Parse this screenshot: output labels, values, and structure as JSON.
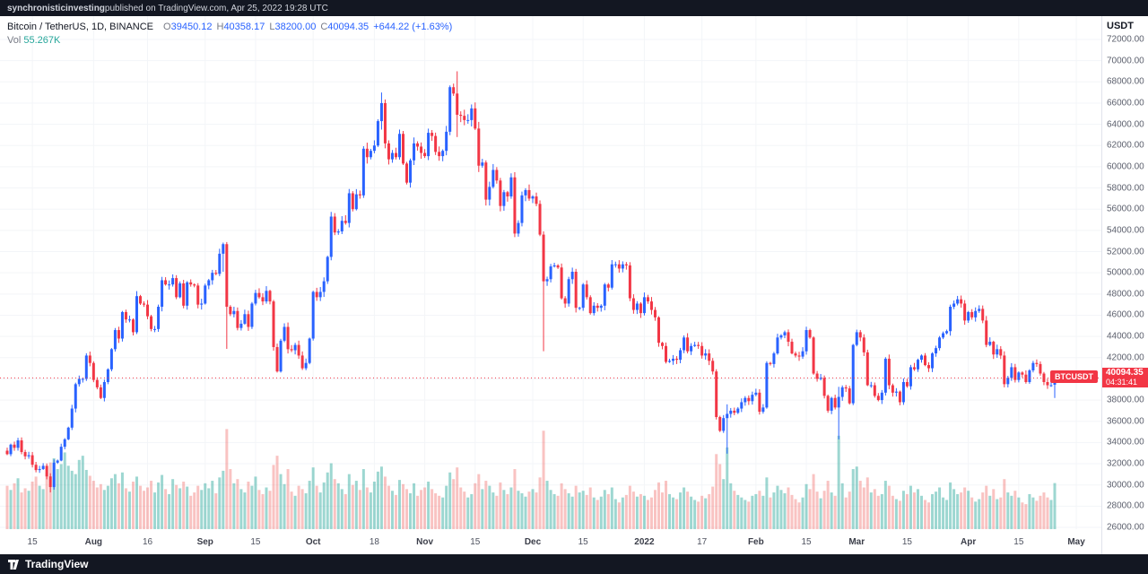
{
  "banner": {
    "user": "synchronisticinvesting",
    "rest": " published on TradingView.com, Apr 25, 2022 19:28 UTC"
  },
  "legend": {
    "title": "Bitcoin / TetherUS, 1D, BINANCE",
    "ohlc": [
      {
        "label": "O",
        "value": "39450.12"
      },
      {
        "label": "H",
        "value": "40358.17"
      },
      {
        "label": "L",
        "value": "38200.00"
      },
      {
        "label": "C",
        "value": "40094.35"
      }
    ],
    "change": "+644.22 (+1.63%)",
    "vol_label": "Vol",
    "vol_value": "55.267K"
  },
  "price_axis": {
    "currency": "USDT"
  },
  "price_line": {
    "symbol": "BTCUSDT",
    "price": "40094.35",
    "countdown": "04:31:41"
  },
  "footer": {
    "brand": "TradingView"
  },
  "colors": {
    "up": "#2962ff",
    "down": "#f23645",
    "volume_up": "rgba(38,166,154,0.45)",
    "volume_down": "rgba(239,83,80,0.35)",
    "accent": "#f23645",
    "grid": "#f3f5f8",
    "frame": "#131722"
  },
  "chart_data": {
    "type": "candlestick",
    "symbol": "BTCUSDT",
    "exchange": "BINANCE",
    "timeframe": "1D",
    "price_unit": "USDT",
    "start_date": "2021-07-08",
    "end_date": "2022-04-25",
    "ylim": [
      26000,
      72000
    ],
    "y_step": 2000,
    "current_price": 40094.35,
    "current_volume_k": 55.267,
    "last_candle": {
      "o": 39450.12,
      "h": 40358.17,
      "l": 38200.0,
      "c": 40094.35
    },
    "closes": [
      32900,
      33800,
      33500,
      34200,
      33100,
      32700,
      32800,
      31900,
      31400,
      31500,
      31800,
      30800,
      29800,
      32100,
      32300,
      33600,
      34300,
      35400,
      37200,
      39500,
      40000,
      40000,
      42200,
      41500,
      39900,
      39200,
      38200,
      39700,
      40900,
      42800,
      44600,
      43800,
      46300,
      45600,
      45600,
      44400,
      47800,
      47100,
      47000,
      45900,
      44700,
      44700,
      46800,
      49300,
      48900,
      48900,
      49500,
      47700,
      49000,
      46900,
      49100,
      48900,
      48800,
      47000,
      47100,
      48800,
      49300,
      50000,
      49900,
      51800,
      52700,
      46800,
      46100,
      46400,
      44800,
      45200,
      46100,
      44900,
      47100,
      48100,
      47700,
      47300,
      48300,
      47300,
      43000,
      40700,
      43600,
      44900,
      42800,
      42700,
      43200,
      42200,
      41000,
      41500,
      43800,
      48200,
      47700,
      48200,
      49200,
      51500,
      55300,
      53800,
      53900,
      54900,
      54700,
      57500,
      56000,
      57400,
      57300,
      61700,
      60900,
      61500,
      62000,
      64300,
      66000,
      62200,
      60700,
      61300,
      60900,
      63100,
      60300,
      58500,
      60600,
      62200,
      61900,
      61300,
      61000,
      63200,
      62900,
      61400,
      61000,
      61500,
      63300,
      67500,
      66900,
      64900,
      64800,
      64400,
      64400,
      65500,
      63600,
      60100,
      60400,
      56900,
      58100,
      59700,
      58700,
      56300,
      57600,
      57200,
      59000,
      53700,
      54700,
      57300,
      57800,
      57000,
      57200,
      56500,
      53600,
      49200,
      49400,
      50600,
      50700,
      50500,
      47600,
      47100,
      49400,
      50100,
      46700,
      46700,
      48900,
      47700,
      46200,
      46900,
      46700,
      46900,
      48900,
      48600,
      50800,
      50800,
      50400,
      50800,
      50700,
      47600,
      46500,
      47100,
      46200,
      47700,
      47300,
      46500,
      45800,
      43400,
      43100,
      41600,
      41700,
      41900,
      41800,
      42700,
      43900,
      42600,
      43100,
      43200,
      43100,
      42200,
      42400,
      41700,
      40700,
      36400,
      35100,
      36300,
      36700,
      37000,
      36800,
      37200,
      37800,
      38200,
      37900,
      38500,
      38700,
      36900,
      37300,
      41500,
      41400,
      42400,
      43900,
      44100,
      44400,
      43500,
      42400,
      42200,
      42100,
      42600,
      44600,
      43900,
      40500,
      40000,
      40100,
      38400,
      37000,
      38200,
      37300,
      38300,
      39200,
      39100,
      37700,
      43200,
      44400,
      43900,
      42500,
      39400,
      39400,
      38400,
      38000,
      38700,
      41900,
      39400,
      38700,
      38800,
      37800,
      39700,
      39300,
      41100,
      40900,
      41800,
      42200,
      41300,
      41000,
      42400,
      42900,
      43900,
      44300,
      44500,
      46800,
      47100,
      47500,
      47100,
      45500,
      46300,
      45800,
      46400,
      46600,
      45500,
      43200,
      43500,
      42300,
      42800,
      42200,
      39500,
      40100,
      41100,
      39900,
      40600,
      40400,
      39700,
      40800,
      41500,
      41400,
      40500,
      39700,
      39400,
      39400,
      40094
    ],
    "volumes_k": [
      52,
      47,
      55,
      61,
      44,
      49,
      46,
      57,
      63,
      52,
      48,
      68,
      80,
      85,
      72,
      78,
      92,
      76,
      70,
      66,
      83,
      88,
      71,
      64,
      58,
      50,
      54,
      47,
      52,
      61,
      66,
      55,
      68,
      49,
      45,
      57,
      63,
      52,
      46,
      50,
      58,
      44,
      56,
      65,
      48,
      42,
      60,
      53,
      49,
      57,
      51,
      40,
      44,
      52,
      47,
      55,
      49,
      58,
      43,
      62,
      70,
      120,
      72,
      55,
      60,
      48,
      44,
      57,
      52,
      63,
      47,
      42,
      50,
      46,
      77,
      88,
      66,
      54,
      72,
      45,
      40,
      52,
      48,
      43,
      58,
      74,
      52,
      44,
      56,
      68,
      79,
      60,
      55,
      48,
      42,
      66,
      53,
      58,
      47,
      72,
      50,
      44,
      57,
      69,
      75,
      63,
      52,
      46,
      41,
      59,
      54,
      48,
      43,
      55,
      40,
      47,
      50,
      57,
      48,
      43,
      40,
      38,
      52,
      68,
      60,
      74,
      50,
      45,
      38,
      42,
      55,
      66,
      48,
      58,
      52,
      44,
      40,
      56,
      47,
      42,
      50,
      72,
      46,
      43,
      39,
      45,
      48,
      44,
      62,
      118,
      58,
      47,
      42,
      40,
      55,
      48,
      43,
      39,
      52,
      44,
      46,
      41,
      50,
      38,
      35,
      39,
      47,
      42,
      50,
      36,
      32,
      38,
      41,
      52,
      45,
      39,
      42,
      40,
      35,
      38,
      47,
      56,
      44,
      58,
      42,
      38,
      36,
      44,
      50,
      45,
      39,
      35,
      33,
      40,
      37,
      42,
      51,
      90,
      78,
      60,
      98,
      55,
      46,
      41,
      38,
      35,
      33,
      40,
      42,
      46,
      40,
      62,
      38,
      44,
      52,
      47,
      43,
      50,
      41,
      36,
      32,
      38,
      54,
      48,
      66,
      45,
      37,
      46,
      58,
      44,
      40,
      112,
      55,
      38,
      45,
      72,
      75,
      58,
      50,
      62,
      44,
      48,
      40,
      42,
      58,
      52,
      40,
      36,
      34,
      46,
      42,
      52,
      44,
      48,
      40,
      35,
      32,
      42,
      45,
      50,
      38,
      35,
      56,
      48,
      42,
      44,
      50,
      46,
      38,
      33,
      36,
      44,
      52,
      40,
      48,
      36,
      38,
      60,
      44,
      40,
      46,
      38,
      32,
      30,
      42,
      38,
      34,
      40,
      44,
      38,
      35,
      55.267
    ],
    "wick_overrides": {
      "12": [
        31100,
        29300
      ],
      "60": [
        52850,
        50100
      ],
      "61": [
        52900,
        42830
      ],
      "104": [
        67000,
        63500
      ],
      "125": [
        69000,
        62800
      ],
      "149": [
        53900,
        42600
      ],
      "200": [
        37600,
        32950
      ],
      "231": [
        39250,
        34300
      ]
    },
    "time_ticks": [
      {
        "t": "15",
        "i": 7
      },
      {
        "t": "Aug",
        "i": 24,
        "m": 1
      },
      {
        "t": "16",
        "i": 39
      },
      {
        "t": "Sep",
        "i": 55,
        "m": 1
      },
      {
        "t": "15",
        "i": 69
      },
      {
        "t": "Oct",
        "i": 85,
        "m": 1
      },
      {
        "t": "18",
        "i": 102
      },
      {
        "t": "Nov",
        "i": 116,
        "m": 1
      },
      {
        "t": "15",
        "i": 130
      },
      {
        "t": "Dec",
        "i": 146,
        "m": 1
      },
      {
        "t": "15",
        "i": 160
      },
      {
        "t": "2022",
        "i": 177,
        "m": 1
      },
      {
        "t": "17",
        "i": 193
      },
      {
        "t": "Feb",
        "i": 208,
        "m": 1
      },
      {
        "t": "15",
        "i": 222
      },
      {
        "t": "Mar",
        "i": 236,
        "m": 1
      },
      {
        "t": "15",
        "i": 250
      },
      {
        "t": "Apr",
        "i": 267,
        "m": 1
      },
      {
        "t": "15",
        "i": 281
      },
      {
        "t": "May",
        "i": 297,
        "m": 1
      }
    ]
  }
}
